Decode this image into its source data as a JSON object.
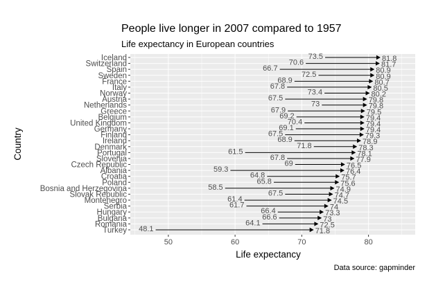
{
  "chart_data": {
    "type": "arrow-dumbbell",
    "title": "People live longer in 2007 compared to 1957",
    "subtitle": "Life expectancy in European countries",
    "xlabel": "Life expectancy",
    "ylabel": "Country",
    "caption": "Data source: gapminder",
    "xlim": [
      44.3,
      87
    ],
    "xticks": [
      50,
      60,
      70,
      80
    ],
    "grid": true,
    "panel_background": "#EBEBEB",
    "arrow_color": "#000000",
    "label_color": "#4D4D4D",
    "countries": [
      "Iceland",
      "Switzerland",
      "Spain",
      "Sweden",
      "France",
      "Italy",
      "Norway",
      "Austria",
      "Netherlands",
      "Greece",
      "Belgium",
      "United Kingdom",
      "Germany",
      "Finland",
      "Ireland",
      "Denmark",
      "Portugal",
      "Slovenia",
      "Czech Republic",
      "Albania",
      "Croatia",
      "Poland",
      "Bosnia and Herzegovina",
      "Slovak Republic",
      "Montenegro",
      "Serbia",
      "Hungary",
      "Bulgaria",
      "Romania",
      "Turkey"
    ],
    "series": [
      {
        "name": "1957",
        "values": [
          73.5,
          70.6,
          66.7,
          72.5,
          68.9,
          67.8,
          73.4,
          67.5,
          73,
          67.9,
          69.2,
          70.4,
          69.1,
          67.5,
          68.9,
          71.8,
          61.5,
          67.8,
          69,
          59.3,
          64.8,
          65.8,
          58.5,
          67.5,
          61.4,
          61.7,
          66.4,
          66.6,
          64.1,
          48.1
        ]
      },
      {
        "name": "2007",
        "values": [
          81.8,
          81.7,
          80.9,
          80.9,
          80.7,
          80.5,
          80.2,
          79.8,
          79.8,
          79.5,
          79.4,
          79.4,
          79.4,
          79.3,
          78.9,
          78.3,
          78.1,
          77.9,
          76.5,
          76.4,
          75.7,
          75.6,
          74.9,
          74.7,
          74.5,
          74,
          73.3,
          73,
          72.5,
          71.8
        ]
      }
    ]
  }
}
